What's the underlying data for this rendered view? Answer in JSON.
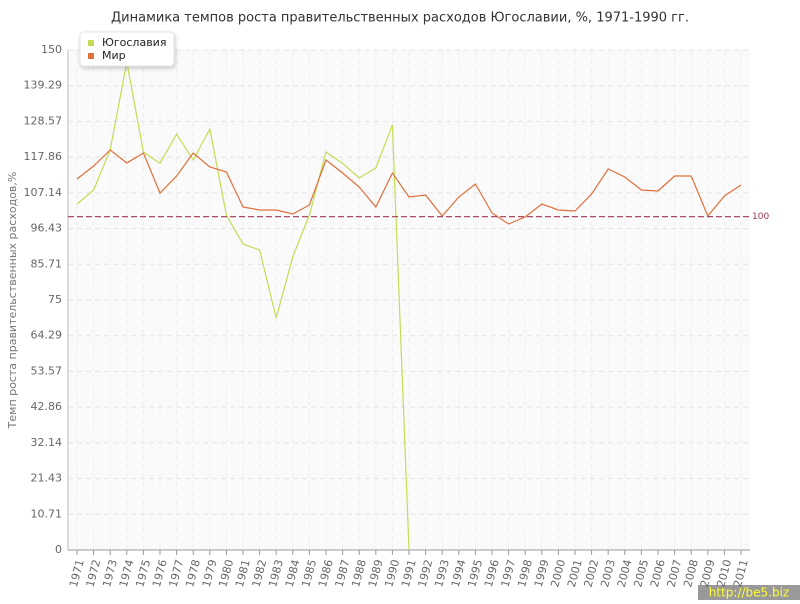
{
  "chart_data": {
    "type": "line",
    "title": "Динамика темпов роста правительственных расходов Югославии, %, 1971-1990 гг.",
    "y_label": "Темп роста правительственных расходов,%",
    "categories": [
      "1971",
      "1972",
      "1973",
      "1974",
      "1975",
      "1976",
      "1977",
      "1978",
      "1979",
      "1980",
      "1981",
      "1982",
      "1983",
      "1984",
      "1985",
      "1986",
      "1987",
      "1988",
      "1989",
      "1990",
      "1991",
      "1992",
      "1993",
      "1994",
      "1995",
      "1996",
      "1997",
      "1998",
      "1999",
      "2000",
      "2001",
      "2002",
      "2003",
      "2004",
      "2005",
      "2006",
      "2007",
      "2008",
      "2009",
      "2010",
      "2011"
    ],
    "series": [
      {
        "name": "Югославия",
        "color": "#c2dd55",
        "values": [
          103.8,
          108,
          120,
          146.4,
          119.4,
          116,
          124.8,
          117,
          126.3,
          100.5,
          91.8,
          90,
          69.6,
          88,
          100.5,
          119.4,
          116,
          111.6,
          114.6,
          127.5,
          0,
          null,
          null,
          null,
          null,
          null,
          null,
          null,
          null,
          null,
          null,
          null,
          null,
          null,
          null,
          null,
          null,
          null,
          null,
          null,
          null
        ]
      },
      {
        "name": "Мир",
        "color": "#e0703a",
        "values": [
          111.3,
          115.2,
          120,
          116.1,
          119.1,
          107.1,
          112.2,
          119.1,
          114.9,
          113.4,
          102.9,
          102,
          102,
          100.8,
          103.5,
          117,
          113.1,
          108.9,
          102.9,
          113.1,
          105.9,
          106.5,
          100.2,
          105.9,
          109.8,
          101.1,
          97.8,
          99.9,
          103.8,
          102,
          101.7,
          106.8,
          114.3,
          111.9,
          108,
          107.7,
          112.2,
          112.2,
          100.2,
          106.2,
          109.5
        ]
      }
    ],
    "reference_line": {
      "value": 100,
      "color": "#a0384a"
    },
    "ylim": [
      0,
      150
    ],
    "yticks": [
      0,
      10.71,
      21.43,
      32.14,
      42.86,
      53.57,
      64.29,
      75,
      85.71,
      96.43,
      107.14,
      117.86,
      128.57,
      139.29,
      150
    ],
    "grid": true,
    "legend": "top-left",
    "watermark": "http://be5.biz"
  }
}
